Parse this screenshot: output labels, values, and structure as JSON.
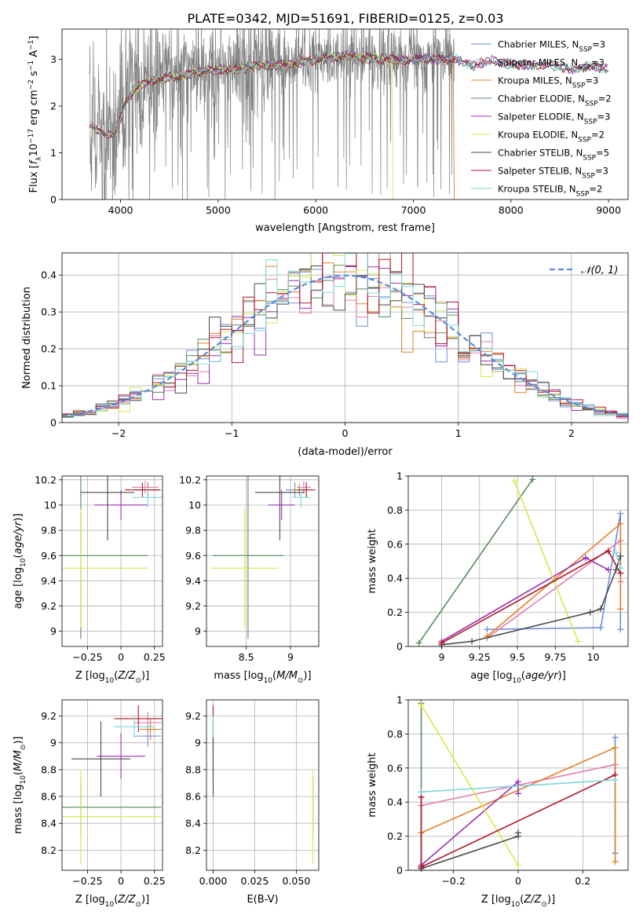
{
  "title": "PLATE=0342, MJD=51691, FIBERID=0125, z=0.03",
  "colors": {
    "Chabrier MILES": "#6b8fdb",
    "Salpeter MILES": "#e37db0",
    "Kroupa MILES": "#e0802a",
    "Chabrier ELODIE": "#5a8a5e",
    "Salpeter ELODIE": "#9a2fb0",
    "Kroupa ELODIE": "#d8e84a",
    "Chabrier STELIB": "#4a4a4a",
    "Salpeter STELIB": "#b0162a",
    "Kroupa STELIB": "#7dd8d8",
    "data": "#808080",
    "normal": "#5b8bd9"
  },
  "chart_data": [
    {
      "id": "spectrum",
      "type": "line",
      "xlabel": "wavelength [Angstrom, rest frame]",
      "ylabel": "Flux [f_λ10^−17 erg cm^−2 s^−1 A^−1]",
      "xlim": [
        3400,
        9200
      ],
      "ylim": [
        0,
        3.65
      ],
      "xticks": [
        4000,
        5000,
        6000,
        7000,
        8000,
        9000
      ],
      "yticks": [
        0,
        1,
        2,
        3
      ],
      "legend_position": "upper right",
      "legend": [
        {
          "model": "Chabrier MILES",
          "label": "Chabrier MILES, N",
          "sub": "SSP",
          "n": "=3"
        },
        {
          "model": "Salpeter MILES",
          "label": "Salpeter MILES, N",
          "sub": "SSP",
          "n": "=3"
        },
        {
          "model": "Kroupa MILES",
          "label": "Kroupa MILES, N",
          "sub": "SSP",
          "n": "=3"
        },
        {
          "model": "Chabrier ELODIE",
          "label": "Chabrier ELODIE, N",
          "sub": "SSP",
          "n": "=2"
        },
        {
          "model": "Salpeter ELODIE",
          "label": "Salpeter ELODIE, N",
          "sub": "SSP",
          "n": "=3"
        },
        {
          "model": "Kroupa ELODIE",
          "label": "Kroupa ELODIE, N",
          "sub": "SSP",
          "n": "=2"
        },
        {
          "model": "Chabrier STELIB",
          "label": "Chabrier STELIB, N",
          "sub": "SSP",
          "n": "=5"
        },
        {
          "model": "Salpeter STELIB",
          "label": "Salpeter STELIB, N",
          "sub": "SSP",
          "n": "=3"
        },
        {
          "model": "Kroupa STELIB",
          "label": "Kroupa STELIB, N",
          "sub": "SSP",
          "n": "=2"
        }
      ],
      "continuum": {
        "x": [
          3680,
          3750,
          3850,
          3950,
          4000,
          4050,
          4150,
          4300,
          4500,
          4700,
          4900,
          5100,
          5300,
          5500,
          5700,
          5900,
          6100,
          6300,
          6500,
          6700,
          6900,
          7100,
          7300,
          7420,
          7600,
          7800,
          8000,
          8200,
          8400,
          8600,
          8800,
          9000
        ],
        "y": [
          1.65,
          1.5,
          1.4,
          1.45,
          1.75,
          2.1,
          2.4,
          2.55,
          2.65,
          2.7,
          2.8,
          2.8,
          2.85,
          2.9,
          2.92,
          3.0,
          3.05,
          3.1,
          3.05,
          3.05,
          3.0,
          3.05,
          3.02,
          3.05,
          2.9,
          3.0,
          2.92,
          2.9,
          2.92,
          2.82,
          2.88,
          2.82
        ]
      },
      "data_range": [
        3680,
        7420
      ],
      "drops": [
        {
          "model": "Kroupa ELODIE",
          "x": 6790
        },
        {
          "model": "Kroupa MILES",
          "x": 7420
        }
      ]
    },
    {
      "id": "residuals",
      "type": "histogram",
      "xlabel": "(data-model)/error",
      "ylabel": "Normed distribution",
      "xlim": [
        -2.5,
        2.5
      ],
      "ylim": [
        0,
        0.46
      ],
      "xticks": [
        -2,
        -1,
        0,
        1,
        2
      ],
      "yticks": [
        0,
        0.1,
        0.2,
        0.3,
        0.4
      ],
      "bin_width": 0.1,
      "legend": "𝒩(0, 1)",
      "legend_position": "upper right"
    },
    {
      "id": "age-vs-z",
      "type": "errorbar",
      "xlabel": "Z [log10(Z/Z⊙)]",
      "ylabel": "age  [log10(age/yr)]",
      "xlim": [
        -0.44,
        0.31
      ],
      "ylim": [
        8.88,
        10.23
      ],
      "xticks": [
        -0.25,
        0.0,
        0.25
      ],
      "yticks": [
        9.0,
        9.2,
        9.4,
        9.6,
        9.8,
        10.0,
        10.2
      ],
      "points": [
        {
          "model": "Chabrier MILES",
          "x": 0.2,
          "y": 10.12,
          "xerr": 0.1,
          "yerr": 0.06
        },
        {
          "model": "Salpeter MILES",
          "x": 0.18,
          "y": 10.14,
          "xerr": 0.1,
          "yerr": 0.05
        },
        {
          "model": "Kroupa MILES",
          "x": 0.2,
          "y": 10.12,
          "xerr": 0.09,
          "yerr": 0.05
        },
        {
          "model": "Chabrier ELODIE",
          "x": -0.3,
          "y": 9.6,
          "xerr": 0.5,
          "yerr": 0.66
        },
        {
          "model": "Salpeter ELODIE",
          "x": 0.0,
          "y": 10.0,
          "xerr": 0.2,
          "yerr": 0.12
        },
        {
          "model": "Kroupa ELODIE",
          "x": -0.3,
          "y": 9.5,
          "xerr": 0.5,
          "yerr": 0.47
        },
        {
          "model": "Chabrier STELIB",
          "x": -0.1,
          "y": 10.1,
          "xerr": 0.2,
          "yerr": 0.38
        },
        {
          "model": "Salpeter STELIB",
          "x": 0.16,
          "y": 10.12,
          "xerr": 0.13,
          "yerr": 0.06
        },
        {
          "model": "Kroupa STELIB",
          "x": 0.2,
          "y": 10.06,
          "xerr": 0.12,
          "yerr": 0.08
        }
      ]
    },
    {
      "id": "age-vs-mass",
      "type": "errorbar",
      "xlabel": "mass [log10(M/M⊙)]",
      "ylabel": "",
      "xlim": [
        8.05,
        9.32
      ],
      "ylim": [
        8.88,
        10.23
      ],
      "xticks": [
        8.5,
        9.0
      ],
      "yticks": [
        9.0,
        9.2,
        9.4,
        9.6,
        9.8,
        10.0,
        10.2
      ],
      "points": [
        {
          "model": "Chabrier MILES",
          "x": 9.05,
          "y": 10.12,
          "xerr": 0.1,
          "yerr": 0.06
        },
        {
          "model": "Salpeter MILES",
          "x": 9.15,
          "y": 10.14,
          "xerr": 0.08,
          "yerr": 0.05
        },
        {
          "model": "Kroupa MILES",
          "x": 9.1,
          "y": 10.12,
          "xerr": 0.08,
          "yerr": 0.05
        },
        {
          "model": "Chabrier ELODIE",
          "x": 8.52,
          "y": 9.6,
          "xerr": 0.4,
          "yerr": 0.66
        },
        {
          "model": "Salpeter ELODIE",
          "x": 8.9,
          "y": 10.0,
          "xerr": 0.15,
          "yerr": 0.12
        },
        {
          "model": "Kroupa ELODIE",
          "x": 8.48,
          "y": 9.5,
          "xerr": 0.38,
          "yerr": 0.47
        },
        {
          "model": "Chabrier STELIB",
          "x": 8.88,
          "y": 10.1,
          "xerr": 0.28,
          "yerr": 0.38
        },
        {
          "model": "Salpeter STELIB",
          "x": 9.18,
          "y": 10.12,
          "xerr": 0.1,
          "yerr": 0.06
        },
        {
          "model": "Kroupa STELIB",
          "x": 9.12,
          "y": 10.06,
          "xerr": 0.1,
          "yerr": 0.08
        }
      ]
    },
    {
      "id": "weight-vs-age",
      "type": "line",
      "xlabel": "age  [log10(age/yr)]",
      "ylabel": "mass weight",
      "xlim": [
        8.78,
        10.23
      ],
      "ylim": [
        0,
        1.0
      ],
      "xticks": [
        9.0,
        9.25,
        9.5,
        9.75,
        10.0
      ],
      "yticks": [
        0.0,
        0.2,
        0.4,
        0.6,
        0.8,
        1.0
      ],
      "series": [
        {
          "model": "Chabrier MILES",
          "x": [
            9.3,
            10.05,
            10.18,
            10.18
          ],
          "y": [
            0.1,
            0.11,
            0.78,
            0.1
          ]
        },
        {
          "model": "Salpeter MILES",
          "x": [
            9.3,
            10.18,
            10.18
          ],
          "y": [
            0.05,
            0.62,
            0.38
          ]
        },
        {
          "model": "Kroupa MILES",
          "x": [
            9.3,
            10.18,
            10.18
          ],
          "y": [
            0.06,
            0.72,
            0.22
          ]
        },
        {
          "model": "Chabrier ELODIE",
          "x": [
            8.85,
            9.6
          ],
          "y": [
            0.02,
            0.98
          ]
        },
        {
          "model": "Salpeter ELODIE",
          "x": [
            9.0,
            9.95,
            10.1
          ],
          "y": [
            0.03,
            0.52,
            0.45
          ]
        },
        {
          "model": "Kroupa ELODIE",
          "x": [
            9.48,
            9.9
          ],
          "y": [
            0.97,
            0.03
          ]
        },
        {
          "model": "Chabrier STELIB",
          "x": [
            9.0,
            9.2,
            9.98,
            10.05,
            10.15,
            10.18
          ],
          "y": [
            0.01,
            0.03,
            0.2,
            0.22,
            0.45,
            0.53
          ]
        },
        {
          "model": "Salpeter STELIB",
          "x": [
            9.0,
            10.1,
            10.18
          ],
          "y": [
            0.02,
            0.56,
            0.43
          ]
        },
        {
          "model": "Kroupa STELIB",
          "x": [
            10.15,
            10.18
          ],
          "y": [
            0.55,
            0.46
          ]
        }
      ]
    },
    {
      "id": "mass-vs-z",
      "type": "errorbar",
      "xlabel": "Z [log10(Z/Z⊙)]",
      "ylabel": "mass [log10(M/M⊙)]",
      "xlim": [
        -0.44,
        0.31
      ],
      "ylim": [
        8.05,
        9.32
      ],
      "xticks": [
        -0.25,
        0.0,
        0.25
      ],
      "yticks": [
        8.2,
        8.4,
        8.6,
        8.8,
        9.0,
        9.2
      ],
      "points": [
        {
          "model": "Chabrier MILES",
          "x": 0.2,
          "y": 9.05,
          "xerr": 0.1,
          "yerr": 0.08
        },
        {
          "model": "Salpeter MILES",
          "x": 0.2,
          "y": 9.15,
          "xerr": 0.1,
          "yerr": 0.08
        },
        {
          "model": "Kroupa MILES",
          "x": 0.22,
          "y": 9.1,
          "xerr": 0.08,
          "yerr": 0.08
        },
        {
          "model": "Chabrier ELODIE",
          "x": -0.3,
          "y": 8.52,
          "xerr": 0.6,
          "yerr": 0.22
        },
        {
          "model": "Salpeter ELODIE",
          "x": 0.0,
          "y": 8.9,
          "xerr": 0.18,
          "yerr": 0.17
        },
        {
          "model": "Kroupa ELODIE",
          "x": -0.3,
          "y": 8.45,
          "xerr": 0.6,
          "yerr": 0.35
        },
        {
          "model": "Chabrier STELIB",
          "x": -0.15,
          "y": 8.88,
          "xerr": 0.22,
          "yerr": 0.28
        },
        {
          "model": "Salpeter STELIB",
          "x": 0.13,
          "y": 9.18,
          "xerr": 0.18,
          "yerr": 0.1
        },
        {
          "model": "Kroupa STELIB",
          "x": 0.1,
          "y": 9.12,
          "xerr": 0.15,
          "yerr": 0.08
        }
      ]
    },
    {
      "id": "mass-vs-ebv",
      "type": "errorbar",
      "xlabel": "E(B-V)",
      "ylabel": "",
      "xlim": [
        -0.004,
        0.0635
      ],
      "ylim": [
        8.05,
        9.32
      ],
      "xticks": [
        0.0,
        0.025,
        0.05
      ],
      "xticklabels": [
        "0.000",
        "0.025",
        "0.050"
      ],
      "yticks": [
        8.2,
        8.4,
        8.6,
        8.8,
        9.0,
        9.2
      ],
      "points": [
        {
          "model": "Chabrier MILES",
          "x": 0.0,
          "y": 9.05,
          "xerr": 0,
          "yerr": 0.08
        },
        {
          "model": "Salpeter MILES",
          "x": 0.0,
          "y": 9.15,
          "xerr": 0,
          "yerr": 0.08
        },
        {
          "model": "Kroupa MILES",
          "x": 0.0,
          "y": 9.1,
          "xerr": 0,
          "yerr": 0.08
        },
        {
          "model": "Chabrier ELODIE",
          "x": 0.06,
          "y": 8.52,
          "xerr": 0,
          "yerr": 0.22
        },
        {
          "model": "Salpeter ELODIE",
          "x": 0.0,
          "y": 8.9,
          "xerr": 0,
          "yerr": 0.17
        },
        {
          "model": "Kroupa ELODIE",
          "x": 0.06,
          "y": 8.45,
          "xerr": 0,
          "yerr": 0.35
        },
        {
          "model": "Chabrier STELIB",
          "x": 0.0,
          "y": 8.88,
          "xerr": 0,
          "yerr": 0.28
        },
        {
          "model": "Salpeter STELIB",
          "x": 0.0,
          "y": 9.18,
          "xerr": 0,
          "yerr": 0.1
        },
        {
          "model": "Kroupa STELIB",
          "x": 0.0,
          "y": 9.12,
          "xerr": 0,
          "yerr": 0.08
        }
      ]
    },
    {
      "id": "weight-vs-z",
      "type": "line",
      "xlabel": "Z [log10(Z/Z⊙)]",
      "ylabel": "mass weight",
      "xlim": [
        -0.34,
        0.34
      ],
      "ylim": [
        0,
        1.0
      ],
      "xticks": [
        -0.2,
        0.0,
        0.2
      ],
      "yticks": [
        0.0,
        0.2,
        0.4,
        0.6,
        0.8,
        1.0
      ],
      "series": [
        {
          "model": "Chabrier MILES",
          "x": [
            0.3,
            0.3
          ],
          "y": [
            0.1,
            0.78
          ]
        },
        {
          "model": "Salpeter MILES",
          "x": [
            -0.3,
            0.3
          ],
          "y": [
            0.38,
            0.62
          ]
        },
        {
          "model": "Kroupa MILES",
          "x": [
            -0.3,
            0.3,
            0.3
          ],
          "y": [
            0.22,
            0.72,
            0.05
          ]
        },
        {
          "model": "Chabrier ELODIE",
          "x": [
            -0.3,
            -0.3
          ],
          "y": [
            0.02,
            0.98
          ]
        },
        {
          "model": "Salpeter ELODIE",
          "x": [
            -0.3,
            0.0,
            0.0
          ],
          "y": [
            0.03,
            0.52,
            0.45
          ]
        },
        {
          "model": "Kroupa ELODIE",
          "x": [
            -0.3,
            0.0
          ],
          "y": [
            0.97,
            0.03
          ]
        },
        {
          "model": "Chabrier STELIB",
          "x": [
            -0.3,
            0.0,
            0.0
          ],
          "y": [
            0.01,
            0.2,
            0.22
          ]
        },
        {
          "model": "Salpeter STELIB",
          "x": [
            -0.3,
            -0.3,
            0.3
          ],
          "y": [
            0.43,
            0.02,
            0.56
          ]
        },
        {
          "model": "Kroupa STELIB",
          "x": [
            -0.3,
            0.3
          ],
          "y": [
            0.46,
            0.53
          ]
        }
      ]
    }
  ]
}
